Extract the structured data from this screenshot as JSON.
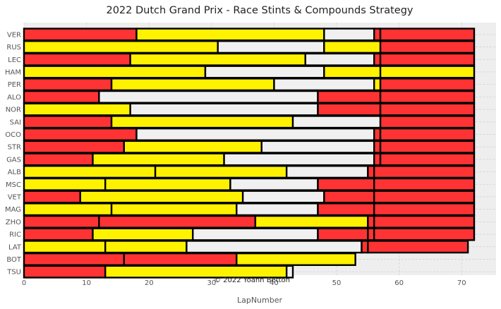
{
  "chart_data": {
    "type": "bar",
    "orientation": "horizontal",
    "stacked": true,
    "title": "2022 Dutch Grand Prix - Race Stints & Compounds Strategy",
    "xlabel": "LapNumber",
    "ylabel": "",
    "xlim": [
      0,
      75.5
    ],
    "xticks": [
      0,
      10,
      20,
      30,
      40,
      50,
      60,
      70
    ],
    "grid": true,
    "annotation": "© 2022 Yoann Betton",
    "compound_colors": {
      "SOFT": "#ff3333",
      "MEDIUM": "#fff200",
      "HARD": "#f0f0f0"
    },
    "drivers": [
      {
        "driver": "VER",
        "stints": [
          {
            "compound": "SOFT",
            "laps": 18
          },
          {
            "compound": "MEDIUM",
            "laps": 30
          },
          {
            "compound": "HARD",
            "laps": 8
          },
          {
            "compound": "SOFT",
            "laps": 1
          },
          {
            "compound": "SOFT",
            "laps": 15
          }
        ]
      },
      {
        "driver": "RUS",
        "stints": [
          {
            "compound": "MEDIUM",
            "laps": 31
          },
          {
            "compound": "HARD",
            "laps": 17
          },
          {
            "compound": "MEDIUM",
            "laps": 9
          },
          {
            "compound": "SOFT",
            "laps": 15
          }
        ]
      },
      {
        "driver": "LEC",
        "stints": [
          {
            "compound": "SOFT",
            "laps": 17
          },
          {
            "compound": "MEDIUM",
            "laps": 28
          },
          {
            "compound": "HARD",
            "laps": 11
          },
          {
            "compound": "SOFT",
            "laps": 1
          },
          {
            "compound": "SOFT",
            "laps": 15
          }
        ]
      },
      {
        "driver": "HAM",
        "stints": [
          {
            "compound": "MEDIUM",
            "laps": 29
          },
          {
            "compound": "HARD",
            "laps": 19
          },
          {
            "compound": "MEDIUM",
            "laps": 9
          },
          {
            "compound": "MEDIUM",
            "laps": 15
          }
        ]
      },
      {
        "driver": "PER",
        "stints": [
          {
            "compound": "SOFT",
            "laps": 14
          },
          {
            "compound": "MEDIUM",
            "laps": 26
          },
          {
            "compound": "HARD",
            "laps": 16
          },
          {
            "compound": "MEDIUM",
            "laps": 1
          },
          {
            "compound": "SOFT",
            "laps": 15
          }
        ]
      },
      {
        "driver": "ALO",
        "stints": [
          {
            "compound": "SOFT",
            "laps": 12
          },
          {
            "compound": "HARD",
            "laps": 35
          },
          {
            "compound": "SOFT",
            "laps": 10
          },
          {
            "compound": "SOFT",
            "laps": 15
          }
        ]
      },
      {
        "driver": "NOR",
        "stints": [
          {
            "compound": "MEDIUM",
            "laps": 17
          },
          {
            "compound": "HARD",
            "laps": 30
          },
          {
            "compound": "SOFT",
            "laps": 10
          },
          {
            "compound": "SOFT",
            "laps": 15
          }
        ]
      },
      {
        "driver": "SAI",
        "stints": [
          {
            "compound": "SOFT",
            "laps": 14
          },
          {
            "compound": "MEDIUM",
            "laps": 29
          },
          {
            "compound": "HARD",
            "laps": 14
          },
          {
            "compound": "SOFT",
            "laps": 15
          }
        ]
      },
      {
        "driver": "OCO",
        "stints": [
          {
            "compound": "SOFT",
            "laps": 18
          },
          {
            "compound": "HARD",
            "laps": 38
          },
          {
            "compound": "SOFT",
            "laps": 1
          },
          {
            "compound": "SOFT",
            "laps": 15
          }
        ]
      },
      {
        "driver": "STR",
        "stints": [
          {
            "compound": "SOFT",
            "laps": 16
          },
          {
            "compound": "MEDIUM",
            "laps": 22
          },
          {
            "compound": "HARD",
            "laps": 18
          },
          {
            "compound": "SOFT",
            "laps": 1
          },
          {
            "compound": "SOFT",
            "laps": 15
          }
        ]
      },
      {
        "driver": "GAS",
        "stints": [
          {
            "compound": "SOFT",
            "laps": 11
          },
          {
            "compound": "MEDIUM",
            "laps": 21
          },
          {
            "compound": "HARD",
            "laps": 24
          },
          {
            "compound": "SOFT",
            "laps": 1
          },
          {
            "compound": "SOFT",
            "laps": 15
          }
        ]
      },
      {
        "driver": "ALB",
        "stints": [
          {
            "compound": "MEDIUM",
            "laps": 21
          },
          {
            "compound": "MEDIUM",
            "laps": 21
          },
          {
            "compound": "HARD",
            "laps": 13
          },
          {
            "compound": "SOFT",
            "laps": 1
          },
          {
            "compound": "SOFT",
            "laps": 16
          }
        ]
      },
      {
        "driver": "MSC",
        "stints": [
          {
            "compound": "MEDIUM",
            "laps": 13
          },
          {
            "compound": "MEDIUM",
            "laps": 20
          },
          {
            "compound": "HARD",
            "laps": 14
          },
          {
            "compound": "SOFT",
            "laps": 9
          },
          {
            "compound": "SOFT",
            "laps": 16
          }
        ]
      },
      {
        "driver": "VET",
        "stints": [
          {
            "compound": "SOFT",
            "laps": 9
          },
          {
            "compound": "MEDIUM",
            "laps": 26
          },
          {
            "compound": "HARD",
            "laps": 13
          },
          {
            "compound": "SOFT",
            "laps": 8
          },
          {
            "compound": "SOFT",
            "laps": 16
          }
        ]
      },
      {
        "driver": "MAG",
        "stints": [
          {
            "compound": "MEDIUM",
            "laps": 14
          },
          {
            "compound": "MEDIUM",
            "laps": 20
          },
          {
            "compound": "HARD",
            "laps": 13
          },
          {
            "compound": "SOFT",
            "laps": 9
          },
          {
            "compound": "SOFT",
            "laps": 16
          }
        ]
      },
      {
        "driver": "ZHO",
        "stints": [
          {
            "compound": "SOFT",
            "laps": 12
          },
          {
            "compound": "SOFT",
            "laps": 25
          },
          {
            "compound": "MEDIUM",
            "laps": 18
          },
          {
            "compound": "SOFT",
            "laps": 1
          },
          {
            "compound": "SOFT",
            "laps": 16
          }
        ]
      },
      {
        "driver": "RIC",
        "stints": [
          {
            "compound": "SOFT",
            "laps": 11
          },
          {
            "compound": "MEDIUM",
            "laps": 16
          },
          {
            "compound": "HARD",
            "laps": 20
          },
          {
            "compound": "SOFT",
            "laps": 8
          },
          {
            "compound": "SOFT",
            "laps": 1
          },
          {
            "compound": "SOFT",
            "laps": 16
          }
        ]
      },
      {
        "driver": "LAT",
        "stints": [
          {
            "compound": "MEDIUM",
            "laps": 13
          },
          {
            "compound": "MEDIUM",
            "laps": 13
          },
          {
            "compound": "HARD",
            "laps": 28
          },
          {
            "compound": "SOFT",
            "laps": 1
          },
          {
            "compound": "SOFT",
            "laps": 16
          }
        ]
      },
      {
        "driver": "BOT",
        "stints": [
          {
            "compound": "SOFT",
            "laps": 16
          },
          {
            "compound": "SOFT",
            "laps": 18
          },
          {
            "compound": "MEDIUM",
            "laps": 19
          }
        ]
      },
      {
        "driver": "TSU",
        "stints": [
          {
            "compound": "SOFT",
            "laps": 13
          },
          {
            "compound": "MEDIUM",
            "laps": 29
          },
          {
            "compound": "HARD",
            "laps": 1
          }
        ]
      }
    ]
  }
}
